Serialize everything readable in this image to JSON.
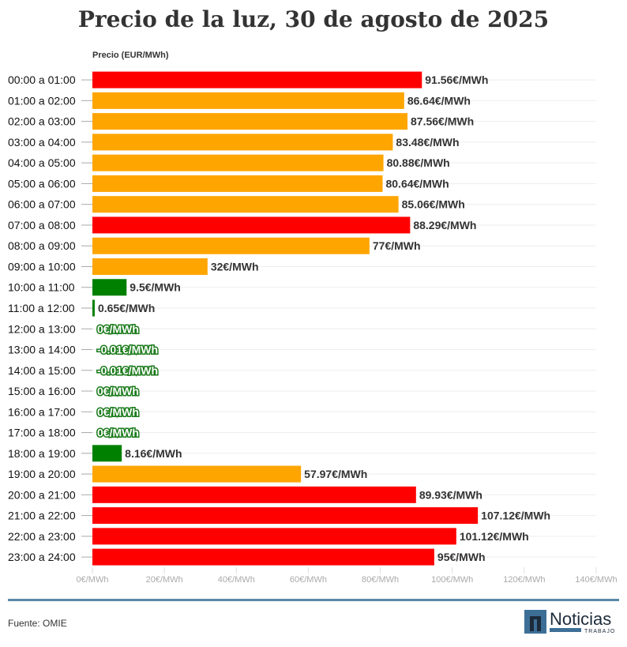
{
  "title": "Precio de la luz, 30 de agosto de 2025",
  "source": "Fuente: OMIE",
  "logo": {
    "name": "Noticias",
    "sub": "TRABAJO"
  },
  "colors": {
    "high": "#fe0000",
    "mid": "#ffa500",
    "low": "#008000",
    "rule": "#5b88a5"
  },
  "chart_data": {
    "type": "bar",
    "orientation": "horizontal",
    "ylabel": "Precio (EUR/MWh)",
    "xlim": [
      0,
      140
    ],
    "xticks": [
      "0€/MWh",
      "20€/MWh",
      "40€/MWh",
      "60€/MWh",
      "80€/MWh",
      "100€/MWh",
      "120€/MWh",
      "140€/MWh"
    ],
    "grid": true,
    "categories": [
      "00:00 a 01:00",
      "01:00 a 02:00",
      "02:00 a 03:00",
      "03:00 a 04:00",
      "04:00 a 05:00",
      "05:00 a 06:00",
      "06:00 a 07:00",
      "07:00 a 08:00",
      "08:00 a 09:00",
      "09:00 a 10:00",
      "10:00 a 11:00",
      "11:00 a 12:00",
      "12:00 a 13:00",
      "13:00 a 14:00",
      "14:00 a 15:00",
      "15:00 a 16:00",
      "16:00 a 17:00",
      "17:00 a 18:00",
      "18:00 a 19:00",
      "19:00 a 20:00",
      "20:00 a 21:00",
      "21:00 a 22:00",
      "22:00 a 23:00",
      "23:00 a 24:00"
    ],
    "values": [
      91.56,
      86.64,
      87.56,
      83.48,
      80.88,
      80.64,
      85.06,
      88.29,
      77,
      32,
      9.5,
      0.65,
      0,
      -0.01,
      -0.01,
      0,
      0,
      0,
      8.16,
      57.97,
      89.93,
      107.12,
      101.12,
      95
    ],
    "data_labels": [
      "91.56€/MWh",
      "86.64€/MWh",
      "87.56€/MWh",
      "83.48€/MWh",
      "80.88€/MWh",
      "80.64€/MWh",
      "85.06€/MWh",
      "88.29€/MWh",
      "77€/MWh",
      "32€/MWh",
      "9.5€/MWh",
      "0.65€/MWh",
      "0€/MWh",
      "-0.01€/MWh",
      "-0.01€/MWh",
      "0€/MWh",
      "0€/MWh",
      "0€/MWh",
      "8.16€/MWh",
      "57.97€/MWh",
      "89.93€/MWh",
      "107.12€/MWh",
      "101.12€/MWh",
      "95€/MWh"
    ],
    "levels": [
      "high",
      "mid",
      "mid",
      "mid",
      "mid",
      "mid",
      "mid",
      "high",
      "mid",
      "mid",
      "low",
      "low",
      "low",
      "low",
      "low",
      "low",
      "low",
      "low",
      "low",
      "mid",
      "high",
      "high",
      "high",
      "high"
    ]
  }
}
